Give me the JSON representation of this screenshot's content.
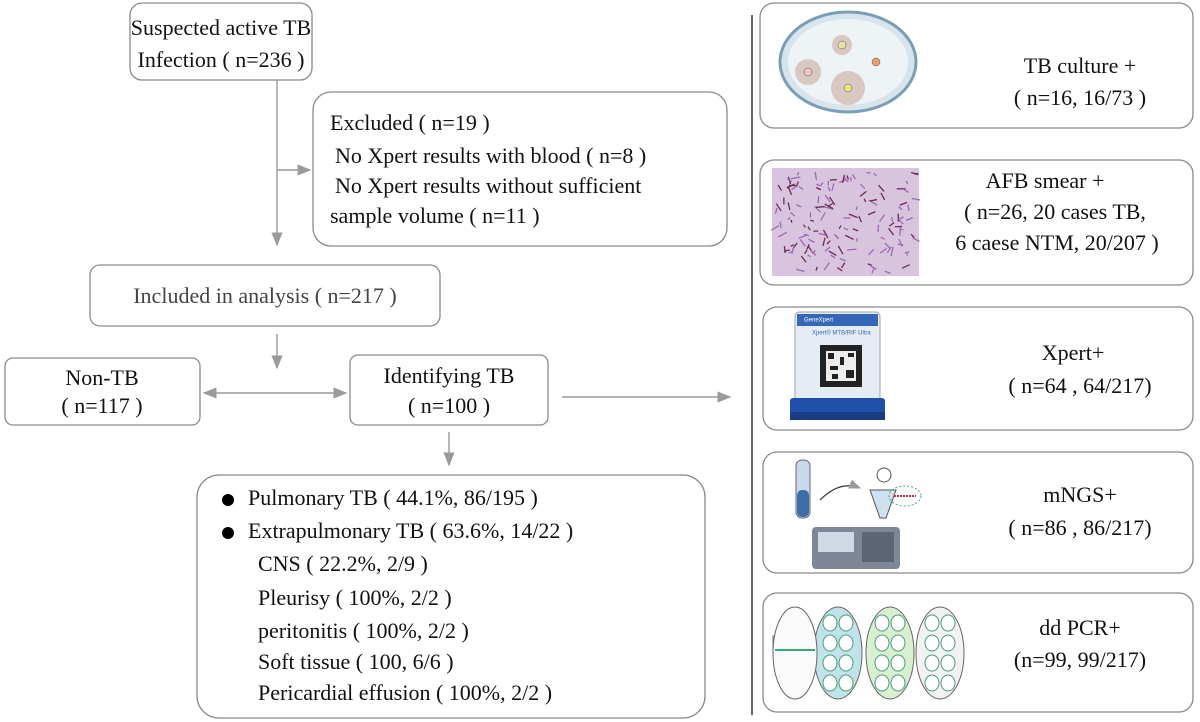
{
  "flow": {
    "suspected": [
      "Suspected  active TB",
      "Infection ( n=236 )"
    ],
    "excluded": [
      "Excluded ( n=19 )",
      "No Xpert results with blood ( n=8 )",
      "No Xpert results without sufficient",
      "sample volume ( n=11 )"
    ],
    "included": "Included in analysis ( n=217 )",
    "non_tb": [
      "Non-TB",
      "( n=117 )"
    ],
    "identifying": [
      "Identifying TB",
      "( n=100 )"
    ],
    "sites": [
      "Pulmonary TB ( 44.1%,  86/195 )",
      "Extrapulmonary TB ( 63.6%,  14/22 )",
      "CNS  ( 22.2%,  2/9 )",
      "Pleurisy  ( 100%,  2/2 )",
      "peritonitis ( 100%,  2/2 )",
      "Soft tissue ( 100,  6/6 )",
      "Pericardial effusion ( 100%,  2/2 )"
    ]
  },
  "methods": [
    {
      "label": [
        "TB culture +",
        "( n=16,  16/73 )"
      ]
    },
    {
      "label": [
        "AFB smear +",
        "( n=26,  20 cases TB,",
        "6 caese NTM,  20/207 )"
      ]
    },
    {
      "label": [
        "Xpert+",
        "( n=64 , 64/217)"
      ],
      "image_text": [
        "GeneXpert",
        "Xpert® MTB/RIF Ultra"
      ]
    },
    {
      "label": [
        "mNGS+",
        "( n=86 ,  86/217)"
      ]
    },
    {
      "label": [
        "dd PCR+",
        "(n=99,  99/217)"
      ]
    }
  ]
}
